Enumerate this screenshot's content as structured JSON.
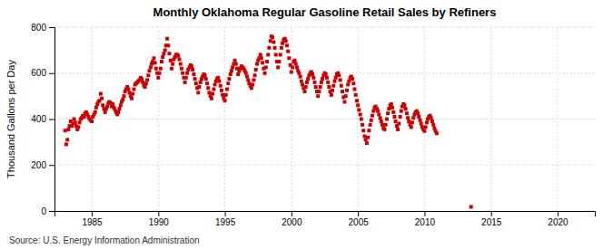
{
  "chart_data": {
    "type": "scatter",
    "title": "Monthly Oklahoma Regular Gasoline Retail Sales by Refiners",
    "ylabel": "Thousand Gallons per Day",
    "annotations": [
      "Source: U.S. Energy Information Administration"
    ],
    "color": "#cc0000",
    "marker": "square",
    "grid": true,
    "xlim": [
      1982.2,
      2022.8
    ],
    "ylim": [
      0,
      800
    ],
    "xticks": [
      1985,
      1990,
      1995,
      2000,
      2005,
      2010,
      2015,
      2020
    ],
    "yticks": [
      0,
      200,
      400,
      600,
      800
    ],
    "x": [
      1983.0,
      1983.08,
      1983.17,
      1983.25,
      1983.33,
      1983.42,
      1983.5,
      1983.58,
      1983.67,
      1983.75,
      1983.83,
      1983.92,
      1984.0,
      1984.08,
      1984.17,
      1984.25,
      1984.33,
      1984.42,
      1984.5,
      1984.58,
      1984.67,
      1984.75,
      1984.83,
      1984.92,
      1985.0,
      1985.08,
      1985.17,
      1985.25,
      1985.33,
      1985.42,
      1985.5,
      1985.58,
      1985.67,
      1985.75,
      1985.83,
      1985.92,
      1986.0,
      1986.08,
      1986.17,
      1986.25,
      1986.33,
      1986.42,
      1986.5,
      1986.58,
      1986.67,
      1986.75,
      1986.83,
      1986.92,
      1987.0,
      1987.08,
      1987.17,
      1987.25,
      1987.33,
      1987.42,
      1987.5,
      1987.58,
      1987.67,
      1987.75,
      1987.83,
      1987.92,
      1988.0,
      1988.08,
      1988.17,
      1988.25,
      1988.33,
      1988.42,
      1988.5,
      1988.58,
      1988.67,
      1988.75,
      1988.83,
      1988.92,
      1989.0,
      1989.08,
      1989.17,
      1989.25,
      1989.33,
      1989.42,
      1989.5,
      1989.58,
      1989.67,
      1989.75,
      1989.83,
      1989.92,
      1990.0,
      1990.08,
      1990.17,
      1990.25,
      1990.33,
      1990.42,
      1990.5,
      1990.58,
      1990.67,
      1990.75,
      1990.83,
      1990.92,
      1991.0,
      1991.08,
      1991.17,
      1991.25,
      1991.33,
      1991.42,
      1991.5,
      1991.58,
      1991.67,
      1991.75,
      1991.83,
      1991.92,
      1992.0,
      1992.08,
      1992.17,
      1992.25,
      1992.33,
      1992.42,
      1992.5,
      1992.58,
      1992.67,
      1992.75,
      1992.83,
      1992.92,
      1993.0,
      1993.08,
      1993.17,
      1993.25,
      1993.33,
      1993.42,
      1993.5,
      1993.58,
      1993.67,
      1993.75,
      1993.83,
      1993.92,
      1994.0,
      1994.08,
      1994.17,
      1994.25,
      1994.33,
      1994.42,
      1994.5,
      1994.58,
      1994.67,
      1994.75,
      1994.83,
      1994.92,
      1995.0,
      1995.08,
      1995.17,
      1995.25,
      1995.33,
      1995.42,
      1995.5,
      1995.58,
      1995.67,
      1995.75,
      1995.83,
      1995.92,
      1996.0,
      1996.08,
      1996.17,
      1996.25,
      1996.33,
      1996.42,
      1996.5,
      1996.58,
      1996.67,
      1996.75,
      1996.83,
      1996.92,
      1997.0,
      1997.08,
      1997.17,
      1997.25,
      1997.33,
      1997.42,
      1997.5,
      1997.58,
      1997.67,
      1997.75,
      1997.83,
      1997.92,
      1998.0,
      1998.08,
      1998.17,
      1998.25,
      1998.33,
      1998.42,
      1998.5,
      1998.58,
      1998.67,
      1998.75,
      1998.83,
      1998.92,
      1999.0,
      1999.08,
      1999.17,
      1999.25,
      1999.33,
      1999.42,
      1999.5,
      1999.58,
      1999.67,
      1999.75,
      1999.83,
      1999.92,
      2000.0,
      2000.08,
      2000.17,
      2000.25,
      2000.33,
      2000.42,
      2000.5,
      2000.58,
      2000.67,
      2000.75,
      2000.83,
      2000.92,
      2001.0,
      2001.08,
      2001.17,
      2001.25,
      2001.33,
      2001.42,
      2001.5,
      2001.58,
      2001.67,
      2001.75,
      2001.83,
      2001.92,
      2002.0,
      2002.08,
      2002.17,
      2002.25,
      2002.33,
      2002.42,
      2002.5,
      2002.58,
      2002.67,
      2002.75,
      2002.83,
      2002.92,
      2003.0,
      2003.08,
      2003.17,
      2003.25,
      2003.33,
      2003.42,
      2003.5,
      2003.58,
      2003.67,
      2003.75,
      2003.83,
      2003.92,
      2004.0,
      2004.08,
      2004.17,
      2004.25,
      2004.33,
      2004.42,
      2004.5,
      2004.58,
      2004.67,
      2004.75,
      2004.83,
      2004.92,
      2005.0,
      2005.08,
      2005.17,
      2005.25,
      2005.33,
      2005.42,
      2005.5,
      2005.58,
      2005.67,
      2005.75,
      2005.83,
      2005.92,
      2006.0,
      2006.08,
      2006.17,
      2006.25,
      2006.33,
      2006.42,
      2006.5,
      2006.58,
      2006.67,
      2006.75,
      2006.83,
      2006.92,
      2007.0,
      2007.08,
      2007.17,
      2007.25,
      2007.33,
      2007.42,
      2007.5,
      2007.58,
      2007.67,
      2007.75,
      2007.83,
      2007.92,
      2008.0,
      2008.08,
      2008.17,
      2008.25,
      2008.33,
      2008.42,
      2008.5,
      2008.58,
      2008.67,
      2008.75,
      2008.83,
      2008.92,
      2009.0,
      2009.08,
      2009.17,
      2009.25,
      2009.33,
      2009.42,
      2009.5,
      2009.58,
      2009.67,
      2009.75,
      2009.83,
      2009.92,
      2010.0,
      2010.08,
      2010.17,
      2010.25,
      2010.33,
      2010.42,
      2010.5,
      2010.58,
      2010.67,
      2010.75,
      2010.83,
      2010.92,
      2013.5
    ],
    "values": [
      350,
      290,
      310,
      355,
      370,
      390,
      370,
      380,
      400,
      385,
      370,
      355,
      365,
      385,
      400,
      405,
      415,
      410,
      425,
      430,
      420,
      410,
      400,
      395,
      390,
      410,
      420,
      430,
      450,
      465,
      475,
      480,
      510,
      490,
      460,
      445,
      430,
      445,
      455,
      470,
      475,
      470,
      455,
      465,
      450,
      440,
      430,
      420,
      430,
      445,
      460,
      475,
      485,
      500,
      520,
      530,
      540,
      530,
      515,
      500,
      490,
      510,
      530,
      550,
      555,
      560,
      565,
      570,
      580,
      575,
      560,
      545,
      540,
      555,
      570,
      590,
      610,
      625,
      640,
      650,
      665,
      645,
      620,
      600,
      580,
      600,
      620,
      650,
      670,
      685,
      700,
      720,
      750,
      720,
      685,
      655,
      620,
      640,
      660,
      670,
      680,
      680,
      675,
      660,
      640,
      620,
      600,
      580,
      560,
      580,
      600,
      615,
      625,
      635,
      630,
      615,
      595,
      575,
      555,
      535,
      515,
      540,
      560,
      575,
      585,
      595,
      590,
      575,
      555,
      535,
      515,
      500,
      490,
      510,
      530,
      550,
      565,
      575,
      580,
      565,
      545,
      525,
      505,
      490,
      480,
      505,
      530,
      555,
      575,
      595,
      610,
      625,
      640,
      655,
      640,
      620,
      595,
      610,
      620,
      630,
      625,
      620,
      610,
      600,
      585,
      570,
      555,
      545,
      535,
      550,
      570,
      590,
      615,
      640,
      655,
      665,
      680,
      665,
      645,
      620,
      600,
      625,
      650,
      680,
      710,
      740,
      760,
      755,
      735,
      710,
      680,
      650,
      625,
      650,
      680,
      710,
      730,
      745,
      750,
      740,
      720,
      695,
      665,
      635,
      605,
      625,
      650,
      655,
      640,
      625,
      610,
      600,
      585,
      565,
      550,
      535,
      520,
      540,
      560,
      575,
      590,
      600,
      605,
      595,
      580,
      560,
      540,
      520,
      500,
      520,
      540,
      560,
      575,
      590,
      600,
      595,
      580,
      560,
      540,
      520,
      505,
      525,
      545,
      565,
      580,
      595,
      600,
      590,
      570,
      545,
      520,
      495,
      475,
      500,
      525,
      550,
      565,
      580,
      585,
      575,
      555,
      530,
      505,
      480,
      460,
      440,
      420,
      400,
      375,
      350,
      325,
      310,
      295,
      320,
      350,
      375,
      395,
      415,
      435,
      450,
      455,
      445,
      435,
      420,
      405,
      390,
      375,
      360,
      355,
      375,
      400,
      425,
      445,
      460,
      465,
      450,
      430,
      410,
      390,
      370,
      355,
      380,
      410,
      435,
      455,
      465,
      460,
      445,
      425,
      405,
      390,
      375,
      365,
      385,
      405,
      420,
      430,
      435,
      425,
      410,
      395,
      380,
      365,
      355,
      348,
      365,
      385,
      400,
      410,
      415,
      405,
      390,
      375,
      360,
      348,
      338,
      18
    ]
  }
}
